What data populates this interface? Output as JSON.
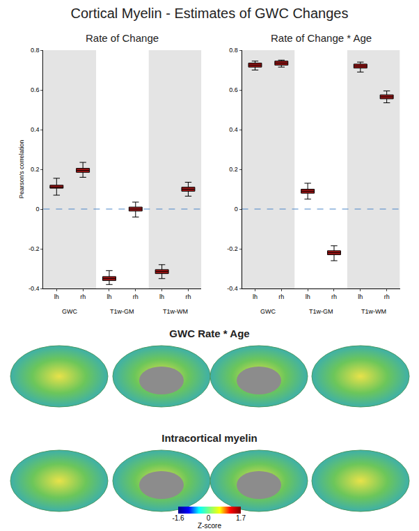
{
  "title": "Cortical Myelin - Estimates of GWC Changes",
  "chart_data": [
    {
      "type": "box",
      "title": "Rate of Change",
      "ylabel": "Pearson's correlation",
      "categories": [
        "lh",
        "rh",
        "lh",
        "rh",
        "lh",
        "rh"
      ],
      "groups": [
        "GWC",
        "T1w-GM",
        "T1w-WM"
      ],
      "color": "#a31515",
      "baseline": 0,
      "boxes": [
        {
          "low": 0.07,
          "q1": 0.105,
          "median": 0.11,
          "q3": 0.12,
          "high": 0.155
        },
        {
          "low": 0.16,
          "q1": 0.185,
          "median": 0.195,
          "q3": 0.205,
          "high": 0.235
        },
        {
          "low": -0.38,
          "q1": -0.36,
          "median": -0.35,
          "q3": -0.34,
          "high": -0.31
        },
        {
          "low": -0.04,
          "q1": -0.01,
          "median": 0.0,
          "q3": 0.01,
          "high": 0.035
        },
        {
          "low": -0.35,
          "q1": -0.325,
          "median": -0.315,
          "q3": -0.305,
          "high": -0.28
        },
        {
          "low": 0.065,
          "q1": 0.09,
          "median": 0.1,
          "q3": 0.11,
          "high": 0.135
        }
      ],
      "ylim": [
        -0.4,
        0.8
      ],
      "yticks": [
        -0.4,
        -0.2,
        0,
        0.2,
        0.4,
        0.6,
        0.8
      ],
      "grid": false
    },
    {
      "type": "box",
      "title": "Rate of Change * Age",
      "categories": [
        "lh",
        "rh",
        "lh",
        "rh",
        "lh",
        "rh"
      ],
      "groups": [
        "GWC",
        "T1w-GM",
        "T1w-WM"
      ],
      "color": "#a31515",
      "baseline": 0,
      "boxes": [
        {
          "low": 0.7,
          "q1": 0.715,
          "median": 0.725,
          "q3": 0.735,
          "high": 0.745
        },
        {
          "low": 0.715,
          "q1": 0.725,
          "median": 0.735,
          "q3": 0.745,
          "high": 0.75
        },
        {
          "low": 0.05,
          "q1": 0.08,
          "median": 0.09,
          "q3": 0.1,
          "high": 0.13
        },
        {
          "low": -0.26,
          "q1": -0.23,
          "median": -0.22,
          "q3": -0.21,
          "high": -0.185
        },
        {
          "low": 0.69,
          "q1": 0.71,
          "median": 0.72,
          "q3": 0.73,
          "high": 0.74
        },
        {
          "low": 0.535,
          "q1": 0.555,
          "median": 0.565,
          "q3": 0.575,
          "high": 0.595
        }
      ],
      "ylim": [
        -0.4,
        0.8
      ],
      "yticks": [
        -0.4,
        -0.2,
        0,
        0.2,
        0.4,
        0.6,
        0.8
      ],
      "grid": false
    }
  ],
  "surface_maps": {
    "panels": [
      "GWC Rate * Age",
      "Intracortical myelin"
    ],
    "colorbar": {
      "range": [
        -1.6,
        1.7
      ],
      "ticks": [
        -1.6,
        0,
        1.7
      ],
      "label": "Z-score"
    }
  }
}
